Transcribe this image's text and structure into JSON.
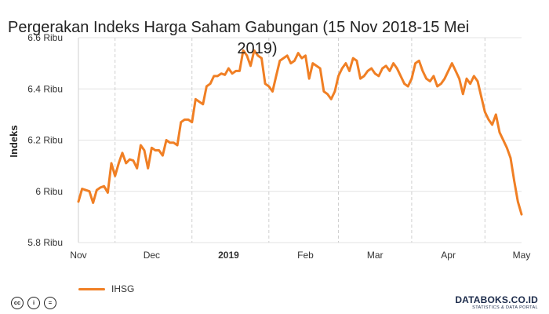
{
  "chart_data": {
    "type": "line",
    "title_line1": "Pergerakan Indeks Harga Saham Gabungan (15 Nov 2018-15 Mei",
    "title_line2": "2019)",
    "ylabel": "Indeks",
    "ylim": [
      5.8,
      6.6
    ],
    "yticks": [
      5.8,
      6.0,
      6.2,
      6.4,
      6.6
    ],
    "ytick_labels": [
      "5.8 Ribu",
      "6 Ribu",
      "6.2 Ribu",
      "6.4 Ribu",
      "6.6 Ribu"
    ],
    "xlim": [
      0,
      121
    ],
    "xticks": [
      {
        "pos": 0,
        "label": "Nov",
        "bold": false
      },
      {
        "pos": 20,
        "label": "Dec",
        "bold": false
      },
      {
        "pos": 41,
        "label": "2019",
        "bold": true
      },
      {
        "pos": 62,
        "label": "Feb",
        "bold": false
      },
      {
        "pos": 81,
        "label": "Mar",
        "bold": false
      },
      {
        "pos": 101,
        "label": "Apr",
        "bold": false
      },
      {
        "pos": 121,
        "label": "May",
        "bold": false
      }
    ],
    "grid_v": [
      10,
      31,
      52,
      71,
      91,
      111
    ],
    "series": [
      {
        "name": "IHSG",
        "color": "#f07f24",
        "x": [
          0,
          1,
          2,
          3,
          4,
          5,
          6,
          7,
          8,
          9,
          10,
          11,
          12,
          13,
          14,
          15,
          16,
          17,
          18,
          19,
          20,
          21,
          22,
          23,
          24,
          25,
          26,
          27,
          28,
          29,
          30,
          31,
          32,
          33,
          34,
          35,
          36,
          37,
          38,
          39,
          40,
          41,
          42,
          43,
          44,
          45,
          46,
          47,
          48,
          49,
          50,
          51,
          52,
          53,
          54,
          55,
          56,
          57,
          58,
          59,
          60,
          61,
          62,
          63,
          64,
          65,
          66,
          67,
          68,
          69,
          70,
          71,
          72,
          73,
          74,
          75,
          76,
          77,
          78,
          79,
          80,
          81,
          82,
          83,
          84,
          85,
          86,
          87,
          88,
          89,
          90,
          91,
          92,
          93,
          94,
          95,
          96,
          97,
          98,
          99,
          100,
          101,
          102,
          103,
          104,
          105,
          106,
          107,
          108,
          109,
          110,
          111,
          112,
          113,
          114,
          115,
          116,
          117,
          118,
          119,
          120,
          121
        ],
        "y": [
          5.96,
          6.01,
          6.005,
          6.0,
          5.955,
          6.005,
          6.015,
          6.02,
          5.995,
          6.11,
          6.06,
          6.11,
          6.15,
          6.11,
          6.125,
          6.12,
          6.09,
          6.18,
          6.16,
          6.09,
          6.17,
          6.16,
          6.16,
          6.14,
          6.2,
          6.19,
          6.19,
          6.18,
          6.27,
          6.28,
          6.28,
          6.27,
          6.36,
          6.35,
          6.34,
          6.41,
          6.42,
          6.45,
          6.45,
          6.46,
          6.455,
          6.48,
          6.46,
          6.47,
          6.47,
          6.55,
          6.53,
          6.49,
          6.55,
          6.53,
          6.52,
          6.42,
          6.41,
          6.39,
          6.45,
          6.51,
          6.52,
          6.53,
          6.5,
          6.51,
          6.54,
          6.52,
          6.53,
          6.44,
          6.5,
          6.49,
          6.48,
          6.39,
          6.38,
          6.36,
          6.39,
          6.45,
          6.48,
          6.5,
          6.47,
          6.52,
          6.51,
          6.44,
          6.45,
          6.47,
          6.48,
          6.46,
          6.45,
          6.48,
          6.49,
          6.47,
          6.5,
          6.48,
          6.45,
          6.42,
          6.41,
          6.44,
          6.5,
          6.51,
          6.47,
          6.44,
          6.43,
          6.45,
          6.41,
          6.42,
          6.44,
          6.47,
          6.5,
          6.47,
          6.44,
          6.38,
          6.44,
          6.42,
          6.45,
          6.43,
          6.37,
          6.31,
          6.28,
          6.26,
          6.3,
          6.23,
          6.2,
          6.17,
          6.13,
          6.04,
          5.96,
          5.91
        ]
      }
    ],
    "grid": true,
    "legend_position": "bottom-left"
  },
  "legend": {
    "label": "IHSG"
  },
  "footer": {
    "license_icons": [
      "cc-icon",
      "info-icon",
      "equal-icon"
    ],
    "brand_name": "DATABOKS.CO.ID",
    "brand_sub": "STATISTICS & DATA PORTAL"
  }
}
